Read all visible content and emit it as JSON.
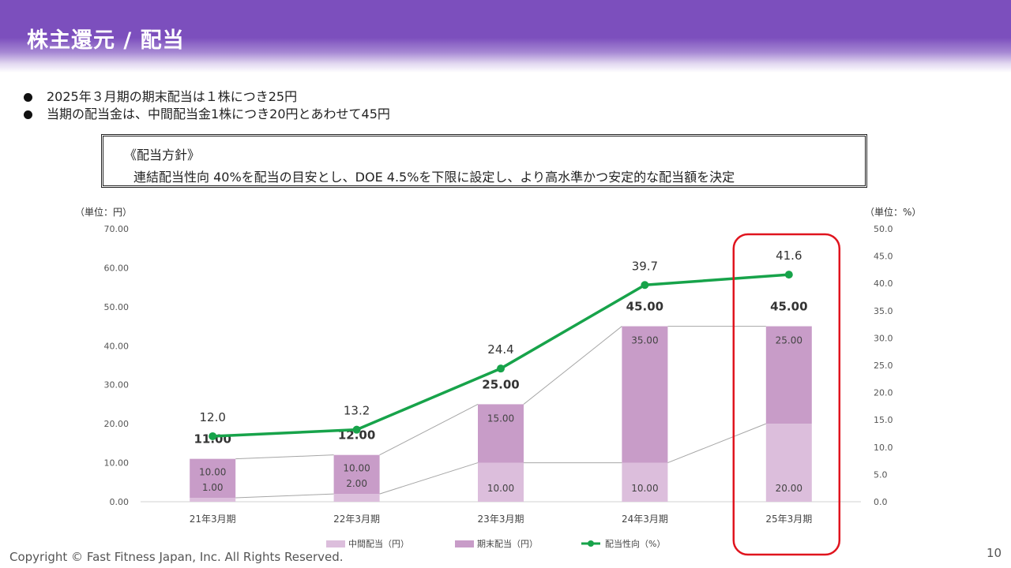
{
  "header": {
    "title": "株主還元 / 配当"
  },
  "bullets": [
    "2025年３月期の期末配当は１株につき25円",
    "当期の配当金は、中間配当金1株につき20円とあわせて45円"
  ],
  "policy": {
    "heading": "《配当方針》",
    "text": "連結配当性向 40%を配当の目安とし、DOE 4.5%を下限に設定し、より高水準かつ安定的な配当額を決定"
  },
  "chart_data": {
    "type": "bar",
    "stacked": true,
    "categories": [
      "21年3月期",
      "22年3月期",
      "23年3月期",
      "24年3月期",
      "25年3月期"
    ],
    "series": [
      {
        "name": "中間配当（円）",
        "axis": "left",
        "values": [
          1.0,
          2.0,
          10.0,
          10.0,
          20.0
        ],
        "labels": [
          "1.00",
          "2.00",
          "10.00",
          "10.00",
          "20.00"
        ],
        "color": "#dcbedc"
      },
      {
        "name": "期末配当（円）",
        "axis": "left",
        "values": [
          10.0,
          10.0,
          15.0,
          35.0,
          25.0
        ],
        "labels": [
          "10.00",
          "10.00",
          "15.00",
          "35.00",
          "25.00"
        ],
        "color": "#c89cc8"
      },
      {
        "name": "配当性向（%）",
        "axis": "right",
        "type": "line",
        "values": [
          12.0,
          13.2,
          24.4,
          39.7,
          41.6
        ],
        "labels": [
          "12.0",
          "13.2",
          "24.4",
          "39.7",
          "41.6"
        ],
        "color": "#17a34a"
      }
    ],
    "totals": [
      "11.00",
      "12.00",
      "25.00",
      "45.00",
      "45.00"
    ],
    "y_left": {
      "unit": "（単位：円）",
      "min": 0,
      "max": 70,
      "ticks": [
        "0.00",
        "10.00",
        "20.00",
        "30.00",
        "40.00",
        "50.00",
        "60.00",
        "70.00"
      ]
    },
    "y_right": {
      "unit": "（単位：%）",
      "min": 0,
      "max": 50,
      "ticks": [
        "0.0",
        "5.0",
        "10.0",
        "15.0",
        "20.0",
        "25.0",
        "30.0",
        "35.0",
        "40.0",
        "45.0",
        "50.0"
      ]
    },
    "highlight_category": "25年3月期",
    "highlight_color": "#e0141e",
    "legend_position": "bottom"
  },
  "footer": {
    "copyright": "Copyright © Fast Fitness Japan, Inc. All Rights Reserved.",
    "page_number": "10"
  }
}
